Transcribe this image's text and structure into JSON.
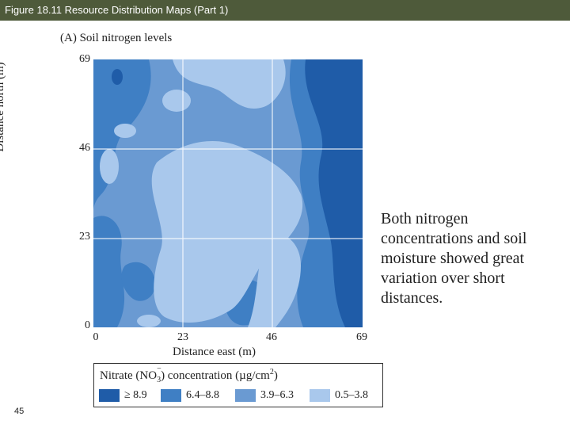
{
  "header": {
    "title": "Figure 18.11  Resource Distribution Maps (Part 1)"
  },
  "figure": {
    "panel_label": "(A)  Soil nitrogen levels",
    "y_axis_label": "Distance north (m)",
    "x_axis_label": "Distance east (m)",
    "y_ticks": [
      "69",
      "46",
      "23",
      "0"
    ],
    "x_ticks": [
      "0",
      "23",
      "46",
      "69"
    ],
    "legend": {
      "title_prefix": "Nitrate (NO",
      "title_subscript": "3",
      "title_superscript": "−",
      "title_suffix": ") concentration (µg/cm",
      "title_unit_power": "2",
      "title_end": ")",
      "items": [
        {
          "label": "≥ 8.9",
          "color": "#1f5ca8"
        },
        {
          "label": "6.4–8.8",
          "color": "#3f7fc4"
        },
        {
          "label": "3.9–6.3",
          "color": "#6a9ad2"
        },
        {
          "label": "0.5–3.8",
          "color": "#a9c8ec"
        }
      ]
    }
  },
  "body_text": "Both nitrogen concentrations and soil moisture showed great variation over short distances.",
  "slide_number": "45"
}
